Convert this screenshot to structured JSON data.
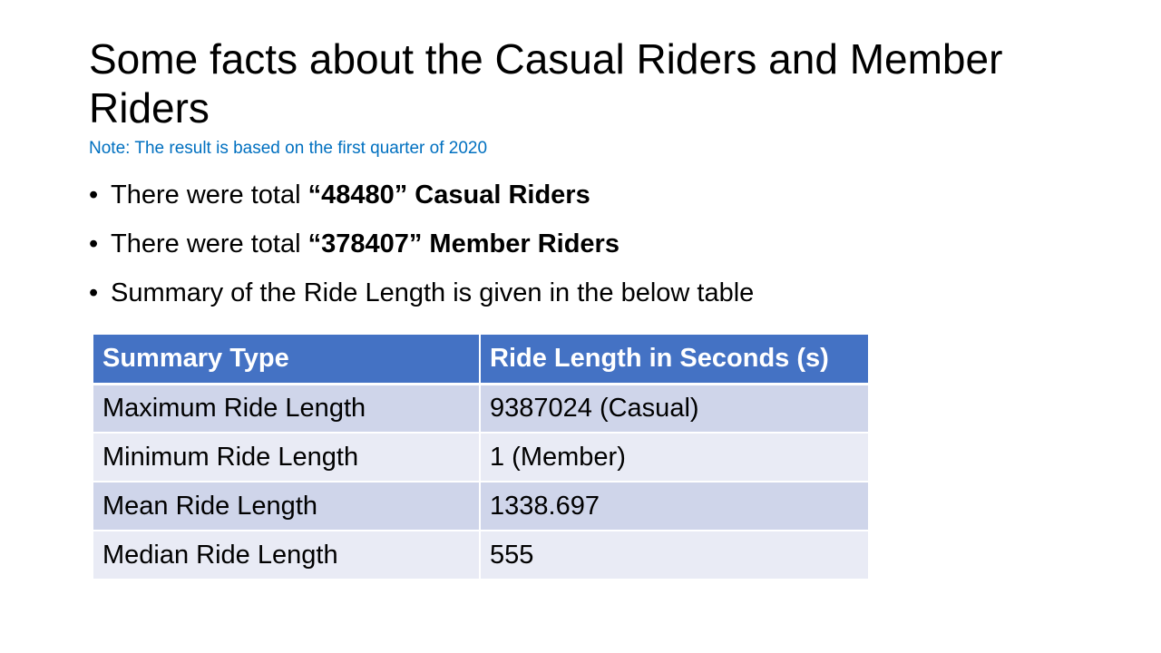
{
  "slide": {
    "title": "Some facts about the Casual Riders and Member Riders",
    "note": "Note: The result is based on the first quarter of 2020"
  },
  "bullets": [
    {
      "prefix": "There were total ",
      "bold": "“48480” Casual Riders",
      "suffix": ""
    },
    {
      "prefix": "There were total ",
      "bold": "“378407” Member Riders",
      "suffix": ""
    },
    {
      "prefix": "Summary of the Ride Length is given in the below table",
      "bold": "",
      "suffix": ""
    }
  ],
  "table": {
    "headers": [
      "Summary Type",
      "Ride Length in Seconds (s)"
    ],
    "rows": [
      [
        "Maximum Ride Length",
        "9387024 (Casual)"
      ],
      [
        "Minimum Ride Length",
        "1 (Member)"
      ],
      [
        "Mean Ride Length",
        "1338.697"
      ],
      [
        "Median Ride Length",
        "555"
      ]
    ],
    "header_color": "#4472c4",
    "band_colors": [
      "#cfd5ea",
      "#e9ebf5"
    ]
  }
}
